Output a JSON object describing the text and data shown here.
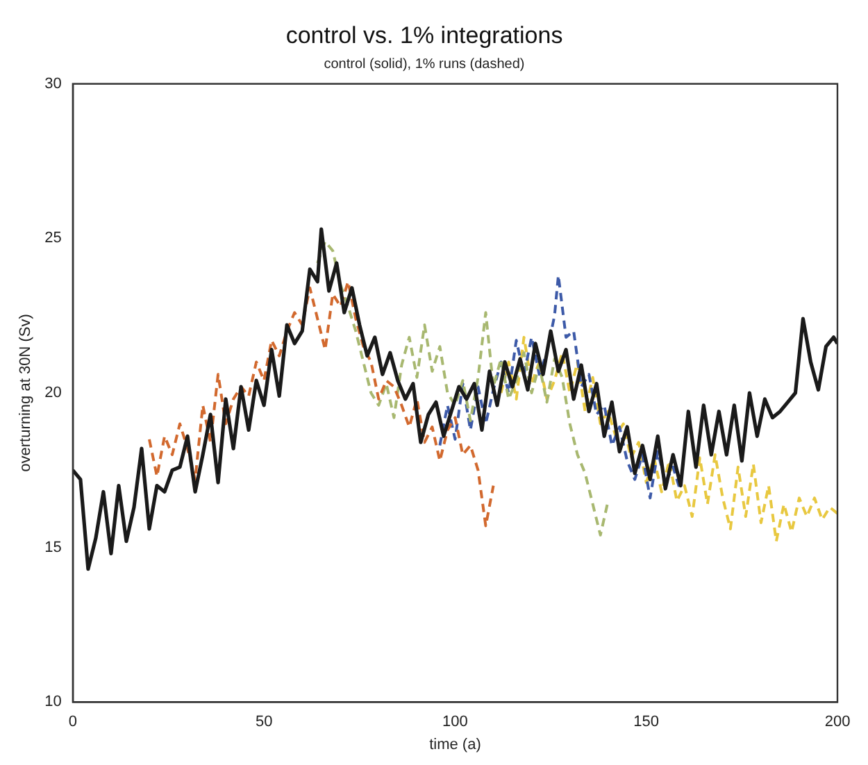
{
  "chart_data": {
    "type": "line",
    "title": "control vs. 1% integrations",
    "subtitle": "control (solid), 1% runs (dashed)",
    "xlabel": "time (a)",
    "ylabel": "overturning at 30N (Sv)",
    "xlim": [
      0,
      200
    ],
    "ylim": [
      10,
      30
    ],
    "xticks": [
      0,
      50,
      100,
      150,
      200
    ],
    "yticks": [
      10,
      15,
      20,
      25,
      30
    ],
    "marker": "none",
    "series": [
      {
        "color": "#1a1a1a",
        "line_style": "solid",
        "x": [
          0,
          2,
          4,
          6,
          8,
          10,
          12,
          14,
          16,
          18,
          20,
          22,
          24,
          26,
          28,
          30,
          32,
          34,
          36,
          38,
          40,
          42,
          44,
          46,
          48,
          50,
          52,
          54,
          56,
          58,
          60,
          62,
          64,
          65,
          67,
          69,
          71,
          73,
          75,
          77,
          79,
          81,
          83,
          85,
          87,
          89,
          91,
          93,
          95,
          97,
          99,
          101,
          103,
          105,
          107,
          109,
          111,
          113,
          115,
          117,
          119,
          121,
          123,
          125,
          127,
          129,
          131,
          133,
          135,
          137,
          139,
          141,
          143,
          145,
          147,
          149,
          151,
          153,
          155,
          157,
          159,
          161,
          163,
          165,
          167,
          169,
          171,
          173,
          175,
          177,
          179,
          181,
          183,
          185,
          187,
          189,
          191,
          193,
          195,
          197,
          199,
          200
        ],
        "values": [
          17.5,
          17.2,
          14.3,
          15.3,
          16.8,
          14.8,
          17.0,
          15.2,
          16.3,
          18.2,
          15.6,
          17.0,
          16.8,
          17.5,
          17.6,
          18.6,
          16.8,
          18.0,
          19.3,
          17.1,
          19.8,
          18.2,
          20.2,
          18.8,
          20.4,
          19.6,
          21.4,
          19.9,
          22.2,
          21.6,
          22.0,
          24.0,
          23.6,
          25.3,
          23.3,
          24.2,
          22.6,
          23.4,
          22.2,
          21.2,
          21.8,
          20.6,
          21.3,
          20.4,
          19.8,
          20.3,
          18.4,
          19.3,
          19.7,
          18.6,
          19.4,
          20.2,
          19.8,
          20.3,
          18.8,
          20.7,
          19.6,
          21.0,
          20.2,
          21.1,
          20.1,
          21.6,
          20.6,
          22.0,
          20.7,
          21.4,
          19.8,
          20.9,
          19.4,
          20.3,
          18.6,
          19.7,
          18.1,
          18.9,
          17.4,
          18.3,
          17.2,
          18.6,
          16.9,
          18.0,
          17.0,
          19.4,
          17.6,
          19.6,
          18.0,
          19.4,
          18.0,
          19.6,
          17.8,
          20.0,
          18.6,
          19.8,
          19.2,
          19.4,
          19.7,
          20.0,
          22.4,
          21.0,
          20.1,
          21.5,
          21.8,
          21.6
        ]
      },
      {
        "color": "#d2692e",
        "line_style": "dashed",
        "x": [
          20,
          22,
          24,
          26,
          28,
          30,
          32,
          34,
          36,
          38,
          40,
          42,
          44,
          46,
          48,
          50,
          52,
          54,
          56,
          58,
          60,
          62,
          64,
          66,
          68,
          70,
          72,
          74,
          76,
          78,
          80,
          82,
          84,
          86,
          88,
          90,
          92,
          94,
          96,
          98,
          100,
          102,
          104,
          106,
          108,
          110
        ],
        "values": [
          18.5,
          17.3,
          18.6,
          18.0,
          19.0,
          18.2,
          17.2,
          19.6,
          18.4,
          20.6,
          19.0,
          19.8,
          20.2,
          19.9,
          21.0,
          20.4,
          21.7,
          21.2,
          22.0,
          22.6,
          22.2,
          23.4,
          22.4,
          21.4,
          23.2,
          22.8,
          23.6,
          22.4,
          21.5,
          21.0,
          19.8,
          20.4,
          20.2,
          19.6,
          18.9,
          19.8,
          18.4,
          18.9,
          17.8,
          18.8,
          19.2,
          18.0,
          18.3,
          17.5,
          15.7,
          17.0
        ]
      },
      {
        "color": "#a8b870",
        "line_style": "dashed",
        "x": [
          64,
          66,
          68,
          70,
          72,
          74,
          76,
          78,
          80,
          82,
          84,
          86,
          88,
          90,
          92,
          94,
          96,
          98,
          100,
          102,
          104,
          106,
          108,
          110,
          112,
          114,
          116,
          118,
          120,
          122,
          124,
          126,
          128,
          130,
          132,
          134,
          136,
          138,
          140
        ],
        "values": [
          24.2,
          24.9,
          24.6,
          23.5,
          22.8,
          22.0,
          21.0,
          20.0,
          19.6,
          20.3,
          19.2,
          20.9,
          21.8,
          20.5,
          22.2,
          20.7,
          21.5,
          20.0,
          19.6,
          20.4,
          19.1,
          20.5,
          22.6,
          20.2,
          21.1,
          19.8,
          20.4,
          21.3,
          20.0,
          20.9,
          19.7,
          21.1,
          20.5,
          19.0,
          18.0,
          17.4,
          16.4,
          15.4,
          16.5
        ]
      },
      {
        "color": "#3d5aa8",
        "line_style": "dashed",
        "x": [
          96,
          98,
          100,
          102,
          104,
          106,
          108,
          110,
          112,
          114,
          116,
          118,
          120,
          122,
          124,
          126,
          127,
          129,
          131,
          133,
          135,
          137,
          139,
          141,
          143,
          145,
          147,
          149,
          151,
          153,
          155,
          157,
          159
        ],
        "values": [
          18.3,
          19.6,
          18.5,
          20.3,
          18.8,
          20.2,
          19.0,
          20.1,
          21.0,
          20.0,
          21.7,
          20.6,
          21.8,
          20.6,
          21.3,
          22.5,
          23.8,
          21.8,
          22.0,
          20.2,
          20.6,
          19.3,
          19.6,
          18.3,
          18.9,
          17.8,
          17.2,
          18.0,
          16.6,
          18.1,
          17.1,
          17.6,
          16.8
        ]
      },
      {
        "color": "#e8c840",
        "line_style": "dashed",
        "x": [
          112,
          114,
          116,
          118,
          120,
          122,
          124,
          126,
          128,
          130,
          132,
          134,
          136,
          138,
          140,
          142,
          144,
          146,
          148,
          150,
          152,
          154,
          156,
          158,
          160,
          162,
          164,
          166,
          168,
          170,
          172,
          174,
          176,
          178,
          180,
          182,
          184,
          186,
          188,
          190,
          192,
          194,
          196,
          198,
          200
        ],
        "values": [
          20.0,
          21.0,
          19.8,
          21.8,
          20.3,
          21.0,
          19.8,
          20.4,
          21.3,
          20.0,
          21.0,
          19.4,
          20.5,
          19.0,
          19.4,
          18.6,
          19.0,
          17.9,
          18.4,
          17.1,
          17.9,
          16.8,
          17.8,
          16.5,
          17.0,
          16.0,
          17.9,
          16.4,
          18.0,
          16.6,
          15.6,
          17.6,
          16.0,
          17.7,
          15.8,
          17.0,
          15.2,
          16.4,
          15.5,
          16.6,
          16.0,
          16.6,
          15.9,
          16.3,
          16.1
        ]
      }
    ]
  }
}
